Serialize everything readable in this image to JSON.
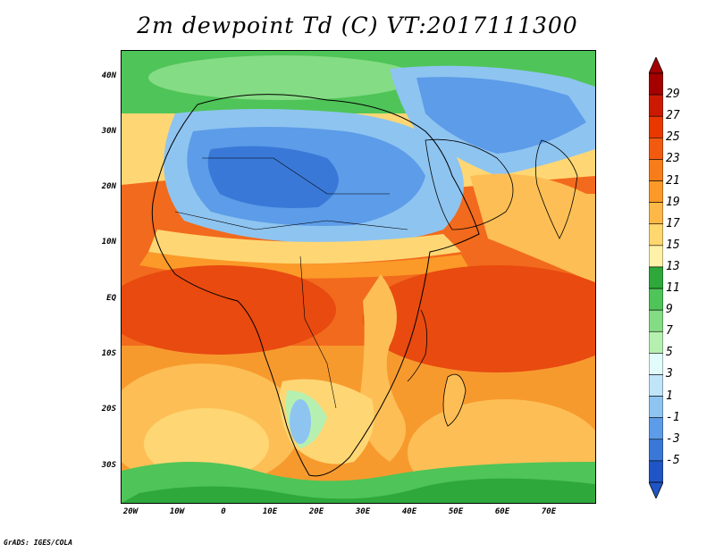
{
  "title": "2m dewpoint Td (C) VT:2017111300",
  "credit": "GrADS: IGES/COLA",
  "map": {
    "lon_range": [
      -22,
      80
    ],
    "lat_range": [
      -36,
      46
    ],
    "lat_ticks": [
      "40N",
      "30N",
      "20N",
      "10N",
      "EQ",
      "10S",
      "20S",
      "30S"
    ],
    "lon_ticks": [
      "20W",
      "10W",
      "0",
      "10E",
      "20E",
      "30E",
      "40E",
      "50E",
      "60E",
      "70E"
    ],
    "variable": "2m dewpoint temperature",
    "units": "C"
  },
  "colorbar": {
    "labels": [
      "29",
      "27",
      "25",
      "23",
      "21",
      "19",
      "17",
      "15",
      "13",
      "11",
      "9",
      "7",
      "5",
      "3",
      "1",
      "-1",
      "-3",
      "-5"
    ],
    "colors": [
      "#a50000",
      "#cc1a00",
      "#e83800",
      "#f25a10",
      "#f77c1a",
      "#fb9a28",
      "#fdb848",
      "#fed76e",
      "#fff1a8",
      "#2ea83a",
      "#4fc458",
      "#84dc84",
      "#b6f0b0",
      "#e2fbfb",
      "#c0e4f8",
      "#8ec4f0",
      "#5c9ce8",
      "#3a78d8",
      "#1f55c4"
    ]
  }
}
